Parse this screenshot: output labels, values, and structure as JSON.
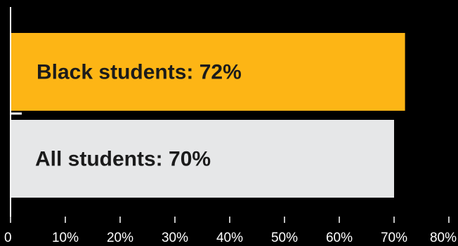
{
  "chart_data": {
    "type": "bar",
    "orientation": "horizontal",
    "title": "",
    "xlabel": "",
    "ylabel": "",
    "categories": [
      "Black students",
      "All students"
    ],
    "values": [
      72,
      70
    ],
    "bar_labels": [
      "Black students: 72%",
      "All students: 70%"
    ],
    "colors": [
      "#FDB515",
      "#E6E7E8"
    ],
    "label_color": "#1B1B1B",
    "axis_color": "#FFFFFF",
    "background": "#000000",
    "xlim": [
      0,
      80
    ],
    "x_ticks": [
      0,
      10,
      20,
      30,
      40,
      50,
      60,
      70,
      80
    ],
    "x_tick_labels": [
      "0",
      "10%",
      "20%",
      "30%",
      "40%",
      "50%",
      "60%",
      "70%",
      "80%"
    ],
    "grid": false,
    "legend": "none"
  }
}
